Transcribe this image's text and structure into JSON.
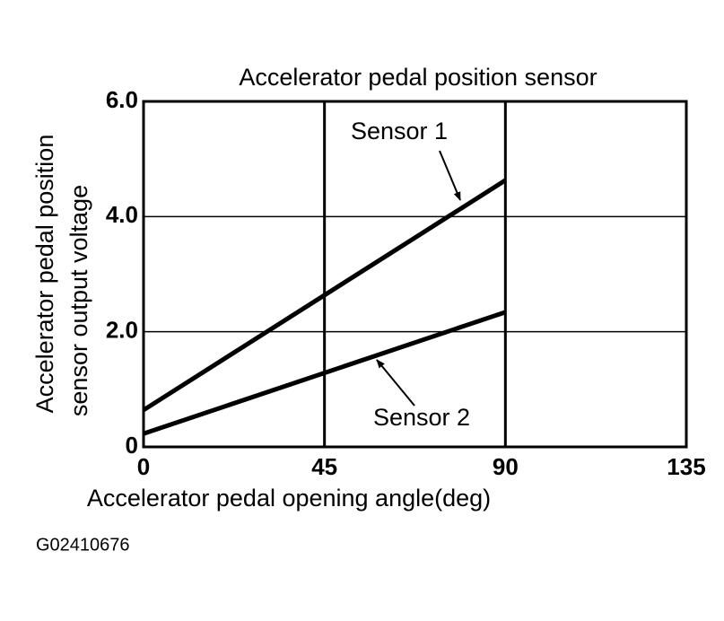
{
  "chart_data": {
    "type": "line",
    "title": "Accelerator pedal position sensor",
    "xlabel": "Accelerator pedal opening angle(deg)",
    "ylabel": [
      "Accelerator pedal position",
      "sensor output voltage"
    ],
    "x": [
      0,
      90
    ],
    "series": [
      {
        "name": "Sensor 1",
        "color": "#000000",
        "values": [
          0.64,
          4.63
        ]
      },
      {
        "name": "Sensor 2",
        "color": "#000000",
        "values": [
          0.23,
          2.34
        ]
      }
    ],
    "xlim": [
      0,
      135
    ],
    "xticks": [
      0,
      45,
      90,
      135
    ],
    "ylim": [
      0,
      6
    ],
    "yticks": [
      0,
      {
        "value": 2,
        "label": "2.0"
      },
      {
        "value": 4,
        "label": "4.0"
      },
      {
        "value": 6,
        "label": "6.0"
      }
    ],
    "grid": true,
    "figure_id": "G02410676"
  }
}
